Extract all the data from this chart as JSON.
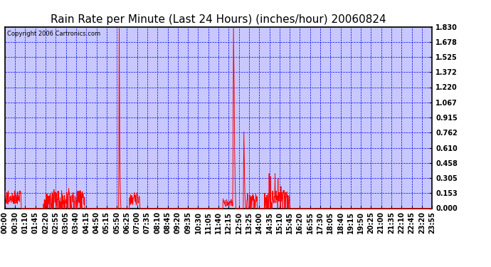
{
  "title": "Rain Rate per Minute (Last 24 Hours) (inches/hour) 20060824",
  "copyright": "Copyright 2006 Cartronics.com",
  "fig_background": "#ffffff",
  "plot_background": "#c8c8ff",
  "line_color": "#ff0000",
  "grid_color": "#0000ff",
  "y_ticks": [
    0.0,
    0.153,
    0.305,
    0.458,
    0.61,
    0.762,
    0.915,
    1.067,
    1.22,
    1.372,
    1.525,
    1.678,
    1.83
  ],
  "x_tick_labels": [
    "00:00",
    "00:30",
    "01:10",
    "01:45",
    "02:20",
    "02:55",
    "03:05",
    "03:40",
    "04:15",
    "04:50",
    "05:15",
    "05:50",
    "06:25",
    "07:00",
    "07:35",
    "08:10",
    "08:45",
    "09:20",
    "09:35",
    "10:30",
    "11:05",
    "11:40",
    "12:15",
    "12:50",
    "13:25",
    "14:00",
    "14:35",
    "15:10",
    "15:45",
    "16:20",
    "16:55",
    "17:30",
    "18:05",
    "18:40",
    "19:15",
    "19:50",
    "20:25",
    "21:00",
    "21:35",
    "22:10",
    "22:45",
    "23:20",
    "23:55"
  ],
  "border_color": "#000000",
  "title_fontsize": 11,
  "tick_fontsize": 7,
  "copyright_fontsize": 6
}
